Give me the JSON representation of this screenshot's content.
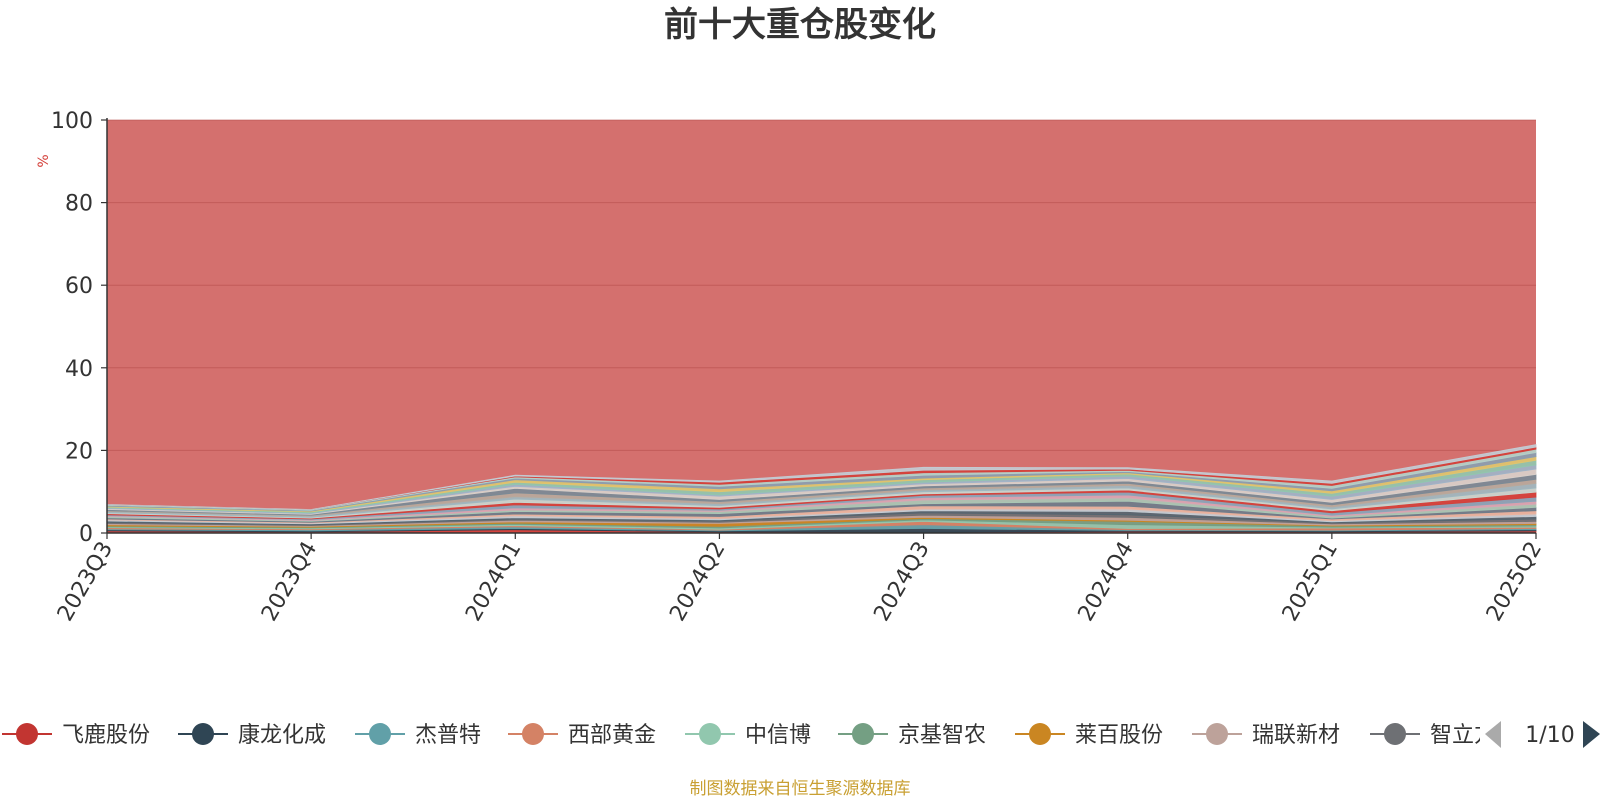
{
  "chart_data": {
    "type": "area",
    "stacked": true,
    "title": "前十大重仓股变化",
    "ylabel": "%",
    "ylim": [
      0,
      100
    ],
    "y_ticks": [
      0,
      20,
      40,
      60,
      80,
      100
    ],
    "grid": true,
    "x": [
      "2023Q3",
      "2023Q4",
      "2024Q1",
      "2024Q2",
      "2024Q3",
      "2024Q4",
      "2025Q1",
      "2025Q2"
    ],
    "legend": {
      "placement": "bottom",
      "visible_entries": [
        "飞鹿股份",
        "康龙化成",
        "杰普特",
        "西部黄金",
        "中信博",
        "京基智农",
        "莱百股份",
        "瑞联新材",
        "智立方"
      ],
      "page": "1/10"
    },
    "series": [
      {
        "color": "#d4403a",
        "values": [
          0.5,
          0.3,
          0.8,
          0.3,
          0.2,
          0.4,
          0.3,
          0.5
        ]
      },
      {
        "color": "#2f4554",
        "values": [
          0.3,
          0.2,
          0.3,
          0.2,
          0.9,
          0.2,
          0.2,
          0.3
        ]
      },
      {
        "color": "#61a0a8",
        "values": [
          0.2,
          0.3,
          0.4,
          0.2,
          0.9,
          0.2,
          0.2,
          0.3
        ]
      },
      {
        "color": "#d48265",
        "values": [
          0.3,
          0.2,
          0.3,
          0.2,
          0.8,
          0.3,
          0.5,
          0.3
        ]
      },
      {
        "color": "#91c7ae",
        "values": [
          0.2,
          0.2,
          0.3,
          0.3,
          0.4,
          0.9,
          0.2,
          0.3
        ]
      },
      {
        "color": "#749f83",
        "values": [
          0.2,
          0.2,
          0.3,
          0.4,
          0.3,
          0.8,
          0.3,
          0.3
        ]
      },
      {
        "color": "#ca8622",
        "values": [
          0.3,
          0.2,
          0.3,
          0.7,
          0.3,
          0.3,
          0.2,
          0.3
        ]
      },
      {
        "color": "#bda29a",
        "values": [
          0.3,
          0.2,
          0.4,
          0.3,
          0.5,
          0.7,
          0.3,
          0.5
        ]
      },
      {
        "color": "#6e7074",
        "values": [
          0.3,
          0.2,
          0.3,
          0.3,
          0.6,
          0.6,
          0.3,
          0.6
        ]
      },
      {
        "color": "#546570",
        "values": [
          0.3,
          0.2,
          0.3,
          0.3,
          0.5,
          0.8,
          0.2,
          0.6
        ]
      },
      {
        "color": "#c4ccd3",
        "values": [
          0.3,
          0.2,
          0.5,
          0.3,
          0.4,
          0.6,
          0.3,
          0.6
        ]
      },
      {
        "color": "#e8b4a0",
        "values": [
          0.2,
          0.2,
          0.4,
          0.5,
          0.8,
          0.7,
          0.4,
          0.8
        ]
      },
      {
        "color": "#6e7c8a",
        "values": [
          0.3,
          0.2,
          0.6,
          0.7,
          0.5,
          1.2,
          0.2,
          0.8
        ]
      },
      {
        "color": "#a9c7b5",
        "values": [
          0.3,
          0.2,
          0.4,
          0.5,
          0.9,
          0.8,
          0.4,
          0.8
        ]
      },
      {
        "color": "#d9a5b3",
        "values": [
          0.2,
          0.2,
          0.5,
          0.3,
          0.6,
          0.7,
          0.3,
          0.7
        ]
      },
      {
        "color": "#8aa4b8",
        "values": [
          0.2,
          0.2,
          0.7,
          0.3,
          0.5,
          0.7,
          0.6,
          1.0
        ]
      },
      {
        "color": "#d4403a",
        "values": [
          0.3,
          0.2,
          0.6,
          0.4,
          0.4,
          0.5,
          0.5,
          1.2
        ]
      },
      {
        "color": "#c9d6cf",
        "values": [
          0.2,
          0.2,
          0.8,
          0.4,
          0.5,
          0.5,
          0.4,
          1.0
        ]
      },
      {
        "color": "#9fb8c0",
        "values": [
          0.3,
          0.3,
          0.6,
          0.5,
          0.4,
          0.6,
          0.5,
          1.1
        ]
      },
      {
        "color": "#b8a99c",
        "values": [
          0.2,
          0.2,
          0.9,
          0.5,
          0.5,
          0.5,
          0.5,
          1.0
        ]
      },
      {
        "color": "#7a8a96",
        "values": [
          0.3,
          0.2,
          1.1,
          0.5,
          0.5,
          0.6,
          0.6,
          1.2
        ]
      },
      {
        "color": "#d9d0ca",
        "values": [
          0.2,
          0.2,
          0.5,
          0.8,
          0.5,
          0.6,
          0.7,
          1.3
        ]
      },
      {
        "color": "#a0b4c8",
        "values": [
          0.2,
          0.2,
          0.5,
          0.3,
          0.4,
          0.6,
          0.8,
          1.0
        ]
      },
      {
        "color": "#91c7ae",
        "values": [
          0.2,
          0.2,
          0.5,
          0.8,
          0.6,
          0.5,
          0.7,
          1.1
        ]
      },
      {
        "color": "#e0c56e",
        "values": [
          0.2,
          0.2,
          0.6,
          0.7,
          0.4,
          0.3,
          0.6,
          0.9
        ]
      },
      {
        "color": "#8b9eb0",
        "values": [
          0.2,
          0.2,
          0.4,
          0.6,
          0.7,
          0.3,
          0.6,
          1.0
        ]
      },
      {
        "color": "#b4d0c8",
        "values": [
          0.2,
          0.2,
          0.3,
          0.5,
          0.6,
          0.3,
          0.7,
          0.8
        ]
      },
      {
        "color": "#d4403a",
        "values": [
          0.0,
          0.0,
          0.2,
          0.5,
          0.6,
          0.3,
          0.5,
          0.5
        ]
      },
      {
        "color": "#c3cbd3",
        "values": [
          0.0,
          0.0,
          0.2,
          0.3,
          0.7,
          0.3,
          0.6,
          0.6
        ]
      }
    ],
    "remainder_color": "#d4706e",
    "source_note": "制图数据来自恒生聚源数据库"
  }
}
